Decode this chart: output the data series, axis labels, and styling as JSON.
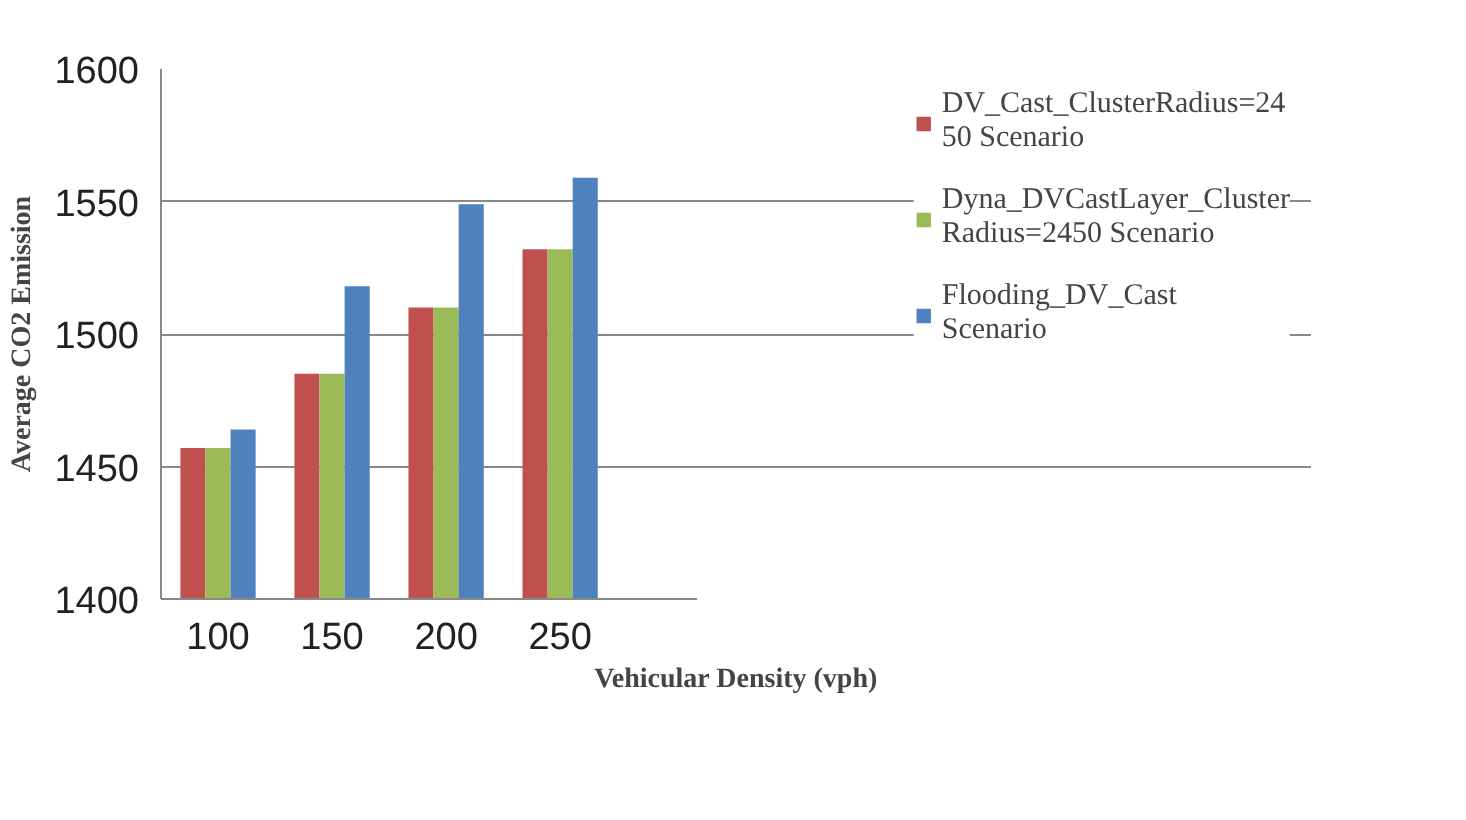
{
  "chart_data": {
    "type": "bar",
    "xlabel": "Vehicular Density (vph)",
    "ylabel": "Average CO2 Emission",
    "categories": [
      "100",
      "150",
      "200",
      "250"
    ],
    "series": [
      {
        "name": "DV_Cast_ClusterRadius=2450 Scenario",
        "color": "#c0504d",
        "values": [
          1457,
          1485,
          1510,
          1532
        ]
      },
      {
        "name": "Dyna_DVCastLayer_ClusterRadius=2450 Scenario",
        "color": "#9bbb59",
        "values": [
          1457,
          1485,
          1510,
          1532
        ]
      },
      {
        "name": "Flooding_DV_Cast Scenario",
        "color": "#4f81bd",
        "values": [
          1464,
          1518,
          1549,
          1559
        ]
      }
    ],
    "ylim": [
      1400,
      1600
    ],
    "yticks": [
      1400,
      1450,
      1500,
      1550,
      1600
    ],
    "grid": "y",
    "legend": "right"
  }
}
